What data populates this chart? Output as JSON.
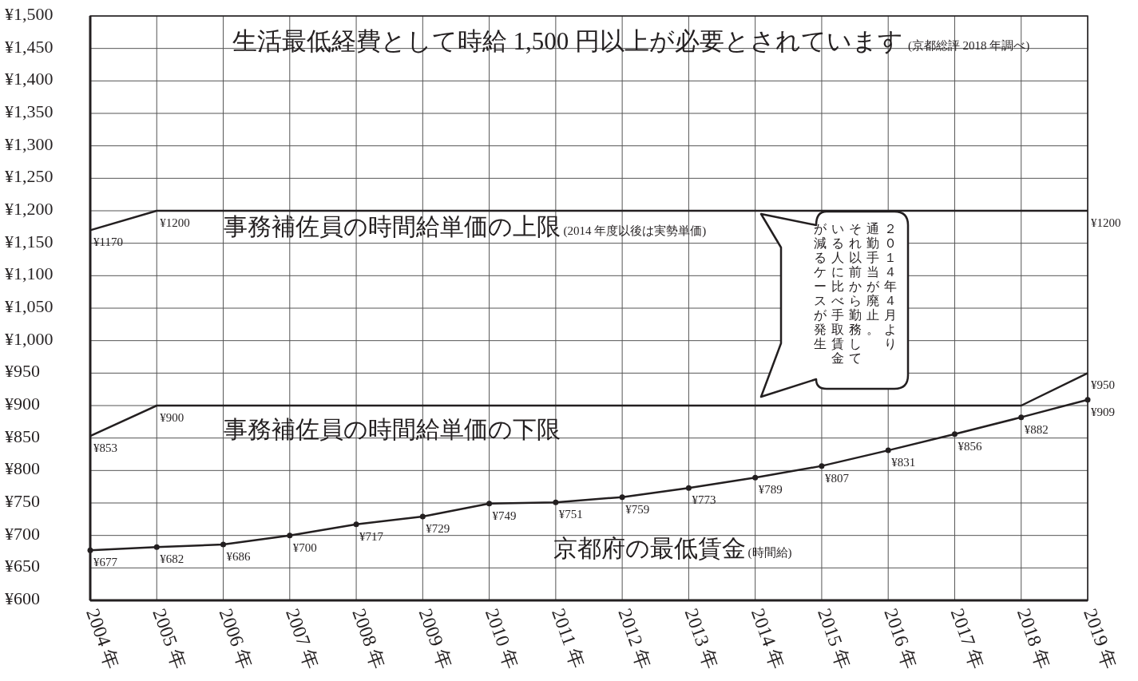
{
  "chart_data": {
    "type": "line",
    "title": "生活最低経費として時給 1,500 円以上が必要とされています",
    "categories": [
      "2004 年",
      "2005 年",
      "2006 年",
      "2007 年",
      "2008 年",
      "2009 年",
      "2010 年",
      "2011 年",
      "2012 年",
      "2013 年",
      "2014 年",
      "2015 年",
      "2016 年",
      "2017 年",
      "2018 年",
      "2019 年"
    ],
    "ylim": [
      600,
      1500
    ],
    "yticks": [
      {
        "value": 600,
        "label": "¥600"
      },
      {
        "value": 650,
        "label": "¥650"
      },
      {
        "value": 700,
        "label": "¥700"
      },
      {
        "value": 750,
        "label": "¥750"
      },
      {
        "value": 800,
        "label": "¥800"
      },
      {
        "value": 850,
        "label": "¥850"
      },
      {
        "value": 900,
        "label": "¥900"
      },
      {
        "value": 950,
        "label": "¥950"
      },
      {
        "value": 1000,
        "label": "¥1,000"
      },
      {
        "value": 1050,
        "label": "¥1,050"
      },
      {
        "value": 1100,
        "label": "¥1,100"
      },
      {
        "value": 1150,
        "label": "¥1,150"
      },
      {
        "value": 1200,
        "label": "¥1,200"
      },
      {
        "value": 1250,
        "label": "¥1,250"
      },
      {
        "value": 1300,
        "label": "¥1,300"
      },
      {
        "value": 1350,
        "label": "¥1,350"
      },
      {
        "value": 1400,
        "label": "¥1,400"
      },
      {
        "value": 1450,
        "label": "¥1,450"
      },
      {
        "value": 1500,
        "label": "¥1,500"
      }
    ],
    "grid": true,
    "series": [
      {
        "name": "事務補佐員の時間給単価の上限",
        "color": "#231f20",
        "values": [
          1170,
          1200,
          1200,
          1200,
          1200,
          1200,
          1200,
          1200,
          1200,
          1200,
          1200,
          1200,
          1200,
          1200,
          1200,
          1200
        ],
        "value_labels": [
          "¥1170",
          "¥1200",
          null,
          null,
          null,
          null,
          null,
          null,
          null,
          null,
          null,
          null,
          null,
          null,
          null,
          "¥1200"
        ]
      },
      {
        "name": "事務補佐員の時間給単価の下限",
        "color": "#231f20",
        "values": [
          853,
          900,
          900,
          900,
          900,
          900,
          900,
          900,
          900,
          900,
          900,
          900,
          900,
          900,
          900,
          950
        ],
        "value_labels": [
          "¥853",
          "¥900",
          null,
          null,
          null,
          null,
          null,
          null,
          null,
          null,
          null,
          null,
          null,
          null,
          null,
          "¥950"
        ]
      },
      {
        "name": "京都府の最低賃金",
        "color": "#231f20",
        "marker": "circle",
        "values": [
          677,
          682,
          686,
          700,
          717,
          729,
          749,
          751,
          759,
          773,
          789,
          807,
          831,
          856,
          882,
          909
        ],
        "value_labels": [
          "¥677",
          "¥682",
          "¥686",
          "¥700",
          "¥717",
          "¥729",
          "¥749",
          "¥751",
          "¥759",
          "¥773",
          "¥789",
          "¥807",
          "¥831",
          "¥856",
          "¥882",
          "¥909"
        ]
      }
    ],
    "annotations": [
      "(京都総評 2018 年調べ)",
      "(2014 年度以後は実勢単価)",
      "(時間給)",
      "２０１４年４月より",
      "通勤手当が廃止。",
      "それ以前から勤務して",
      "いる人に比べ手取賃金",
      "が減るケースが発生"
    ]
  }
}
